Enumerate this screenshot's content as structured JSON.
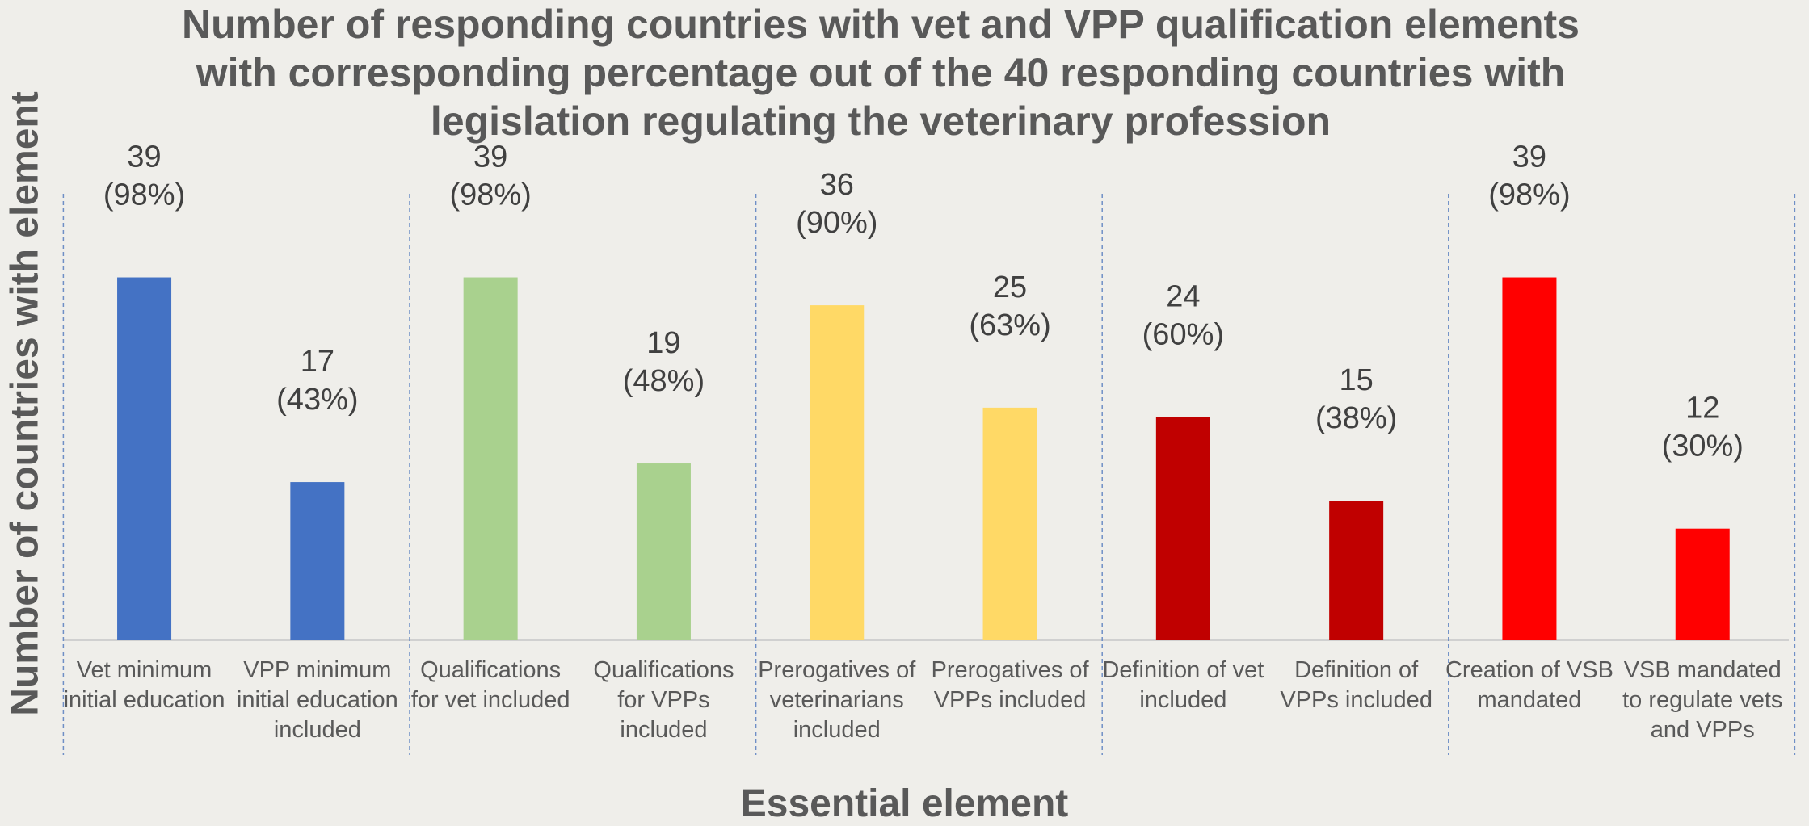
{
  "chart_data": {
    "type": "bar",
    "title": "Number of responding countries with vet and VPP qualification elements with corresponding percentage out of the 40 responding countries with legislation regulating the veterinary profession",
    "x_label": "Essential element",
    "y_label": "Number of countries with element",
    "categories": [
      "Vet minimum initial education",
      "VPP minimum initial education included",
      "Qualifications for vet included",
      "Qualifications for VPPs included",
      "Prerogatives of veterinarians included",
      "Prerogatives of VPPs included",
      "Definition of vet included",
      "Definition of VPPs included",
      "Creation of VSB mandated",
      "VSB mandated to regulate vets and VPPs"
    ],
    "values": [
      39,
      17,
      39,
      19,
      36,
      25,
      24,
      15,
      39,
      12
    ],
    "value_labels": [
      "39 (98%)",
      "17 (43%)",
      "39 (98%)",
      "19 (48%)",
      "36 (90%)",
      "25 (63%)",
      "24 (60%)",
      "15 (38%)",
      "39 (98%)",
      "12 (30%)"
    ],
    "colors": [
      "#4472c4",
      "#4472c4",
      "#a9d18e",
      "#a9d18e",
      "#ffd966",
      "#ffd966",
      "#c00000",
      "#c00000",
      "#ff0000",
      "#ff0000"
    ],
    "ylim": [
      0,
      40
    ]
  }
}
